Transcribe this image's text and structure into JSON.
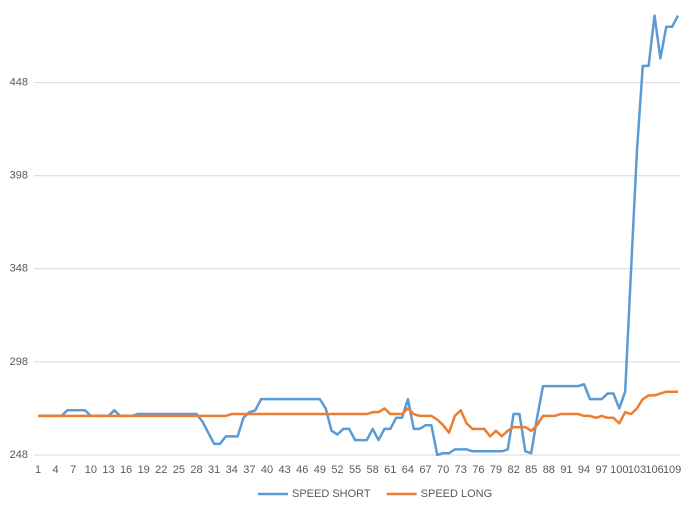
{
  "chart_data": {
    "type": "line",
    "categories": [
      "1",
      null,
      null,
      "4",
      null,
      null,
      "7",
      null,
      null,
      "10",
      null,
      null,
      "13",
      null,
      null,
      "16",
      null,
      null,
      "19",
      null,
      null,
      "22",
      null,
      null,
      "25",
      null,
      null,
      "28",
      null,
      null,
      "31",
      null,
      null,
      "34",
      null,
      null,
      "37",
      null,
      null,
      "40",
      null,
      null,
      "43",
      null,
      null,
      "46",
      null,
      null,
      "49",
      null,
      null,
      "52",
      null,
      null,
      "55",
      null,
      null,
      "58",
      null,
      null,
      "61",
      null,
      null,
      "64",
      null,
      null,
      "67",
      null,
      null,
      "70",
      null,
      null,
      "73",
      null,
      null,
      "76",
      null,
      null,
      "79",
      null,
      null,
      "82",
      null,
      null,
      "85",
      null,
      null,
      "88",
      null,
      null,
      "91",
      null,
      null,
      "94",
      null,
      null,
      "97",
      null,
      null,
      "100",
      null,
      null,
      "103",
      null,
      null,
      "106",
      null,
      null,
      "109",
      null
    ],
    "series": [
      {
        "name": "SPEED SHORT",
        "color": "#5b9bd5",
        "values": [
          269,
          269,
          269,
          269,
          269,
          272,
          272,
          272,
          272,
          269,
          269,
          269,
          269,
          272,
          269,
          269,
          269,
          270,
          270,
          270,
          270,
          270,
          270,
          270,
          270,
          270,
          270,
          270,
          266,
          260,
          254,
          254,
          258,
          258,
          258,
          268,
          271,
          272,
          278,
          278,
          278,
          278,
          278,
          278,
          278,
          278,
          278,
          278,
          278,
          273,
          261,
          259,
          262,
          262,
          256,
          256,
          256,
          262,
          256,
          262,
          262,
          268,
          268,
          278,
          262,
          262,
          264,
          264,
          248,
          249,
          249,
          251,
          251,
          251,
          250,
          250,
          250,
          250,
          250,
          250,
          251,
          270,
          270,
          250,
          249,
          268,
          285,
          285,
          285,
          285,
          285,
          285,
          285,
          286,
          278,
          278,
          278,
          281,
          281,
          273,
          282,
          347,
          411,
          457,
          457,
          484,
          461,
          478,
          478,
          484
        ]
      },
      {
        "name": "SPEED LONG",
        "color": "#ed7d31",
        "values": [
          269,
          269,
          269,
          269,
          269,
          269,
          269,
          269,
          269,
          269,
          269,
          269,
          269,
          269,
          269,
          269,
          269,
          269,
          269,
          269,
          269,
          269,
          269,
          269,
          269,
          269,
          269,
          269,
          269,
          269,
          269,
          269,
          269,
          270,
          270,
          270,
          270,
          270,
          270,
          270,
          270,
          270,
          270,
          270,
          270,
          270,
          270,
          270,
          270,
          270,
          270,
          270,
          270,
          270,
          270,
          270,
          270,
          271,
          271,
          273,
          270,
          270,
          270,
          273,
          270,
          269,
          269,
          269,
          267,
          264,
          260,
          269,
          272,
          265,
          262,
          262,
          262,
          258,
          261,
          258,
          261,
          263,
          263,
          263,
          261,
          264,
          269,
          269,
          269,
          270,
          270,
          270,
          270,
          269,
          269,
          268,
          269,
          268,
          268,
          265,
          271,
          270,
          273,
          278,
          280,
          280,
          281,
          282,
          282,
          282
        ]
      }
    ],
    "ylim": [
      248,
      487
    ],
    "yticks": [
      248,
      298,
      348,
      398,
      448
    ],
    "grid": true
  }
}
